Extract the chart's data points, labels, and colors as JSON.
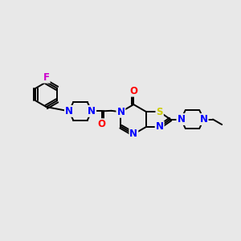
{
  "bg_color": "#e8e8e8",
  "bond_color": "#000000",
  "N_color": "#0000ff",
  "O_color": "#ff0000",
  "S_color": "#cccc00",
  "F_color": "#cc00cc",
  "lw": 1.4,
  "fs": 8.5,
  "figsize": [
    3.0,
    3.0
  ],
  "dpi": 100,
  "xlim": [
    0,
    10
  ],
  "ylim": [
    0,
    10
  ]
}
